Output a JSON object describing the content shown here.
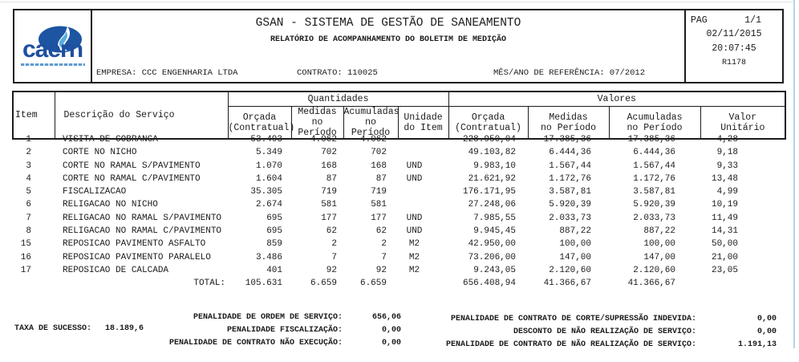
{
  "logo": {
    "company": "caern"
  },
  "report_header": {
    "title": "GSAN - SISTEMA DE GESTÃO DE SANEAMENTO",
    "subtitle": "RELATÓRIO DE ACOMPANHAMENTO DO BOLETIM DE MEDIÇÃO",
    "empresa": "EMPRESA: CCC ENGENHARIA LTDA",
    "contrato": "CONTRATO: 110025",
    "referencia": "MÊS/ANO DE REFERÊNCIA: 07/2012",
    "pag_label": "PAG",
    "pag_value": "1/1",
    "date": "02/11/2015",
    "time": "20:07:45",
    "report_code": "R1178"
  },
  "table": {
    "headers": {
      "item": "Item",
      "descricao": "Descrição do Serviço",
      "quantidades": "Quantidades",
      "valores": "Valores",
      "q_orcada": "Orçada\n(Contratual)",
      "q_medidas": "Medidas\nno Período",
      "q_acumuladas": "Acumuladas\nno Período",
      "unidade": "Unidade\ndo Item",
      "v_orcada": "Orçada\n(Contratual)",
      "v_medidas": "Medidas\nno Período",
      "v_acumuladas": "Acumuladas\nno Período",
      "v_unitario": "Valor\nUnitário"
    },
    "rows": [
      [
        "1",
        "VISITA DE COBRANCA",
        "53.493",
        "4.062",
        "4.062",
        "",
        "228.950,04",
        "17.385,36",
        "17.385,36",
        "4,28"
      ],
      [
        "2",
        "CORTE NO NICHO",
        "5.349",
        "702",
        "702",
        "",
        "49.103,82",
        "6.444,36",
        "6.444,36",
        "9,18"
      ],
      [
        "3",
        "CORTE NO RAMAL S/PAVIMENTO",
        "1.070",
        "168",
        "168",
        "UND",
        "9.983,10",
        "1.567,44",
        "1.567,44",
        "9,33"
      ],
      [
        "4",
        "CORTE NO RAMAL C/PAVIMENTO",
        "1.604",
        "87",
        "87",
        "UND",
        "21.621,92",
        "1.172,76",
        "1.172,76",
        "13,48"
      ],
      [
        "5",
        "FISCALIZACAO",
        "35.305",
        "719",
        "719",
        "",
        "176.171,95",
        "3.587,81",
        "3.587,81",
        "4,99"
      ],
      [
        "6",
        "RELIGACAO NO NICHO",
        "2.674",
        "581",
        "581",
        "",
        "27.248,06",
        "5.920,39",
        "5.920,39",
        "10,19"
      ],
      [
        "7",
        "RELIGACAO NO RAMAL S/PAVIMENTO",
        "695",
        "177",
        "177",
        "UND",
        "7.985,55",
        "2.033,73",
        "2.033,73",
        "11,49"
      ],
      [
        "8",
        "RELIGACAO NO RAMAL C/PAVIMENTO",
        "695",
        "62",
        "62",
        "UND",
        "9.945,45",
        "887,22",
        "887,22",
        "14,31"
      ],
      [
        "15",
        "REPOSICAO PAVIMENTO ASFALTO",
        "859",
        "2",
        "2",
        "M2",
        "42.950,00",
        "100,00",
        "100,00",
        "50,00"
      ],
      [
        "16",
        "REPOSICAO PAVIMENTO PARALELO",
        "3.486",
        "7",
        "7",
        "M2",
        "73.206,00",
        "147,00",
        "147,00",
        "21,00"
      ],
      [
        "17",
        "REPOSICAO DE CALCADA",
        "401",
        "92",
        "92",
        "M2",
        "9.243,05",
        "2.120,60",
        "2.120,60",
        "23,05"
      ]
    ],
    "total": {
      "label": "TOTAL:",
      "q_orcada": "105.631",
      "q_medidas": "6.659",
      "q_acumuladas": "6.659",
      "v_orcada": "656.408,94",
      "v_medidas": "41.366,67",
      "v_acumuladas": "41.366,67"
    }
  },
  "footer": {
    "taxa_label": "TAXA DE SUCESSO:",
    "taxa_value": "18.189,6",
    "left_rows": [
      {
        "label": "PENALIDADE DE ORDEM DE SERVIÇO:",
        "value": "656,06"
      },
      {
        "label": "PENALIDADE FISCALIZAÇÃO:",
        "value": "0,00"
      },
      {
        "label": "PENALIDADE DE CONTRATO NÃO EXECUÇÃO:",
        "value": "0,00"
      }
    ],
    "right_rows": [
      {
        "label": "PENALIDADE DE CONTRATO DE CORTE/SUPRESSÃO INDEVIDA:",
        "value": "0,00"
      },
      {
        "label": "DESCONTO DE NÃO REALIZAÇÃO DE SERVIÇO:",
        "value": "0,00"
      },
      {
        "label": "PENALIDADE DE CONTRATO DE NÃO REALIZAÇÃO DE SERVIÇO:",
        "value": "1.191,13"
      }
    ]
  }
}
